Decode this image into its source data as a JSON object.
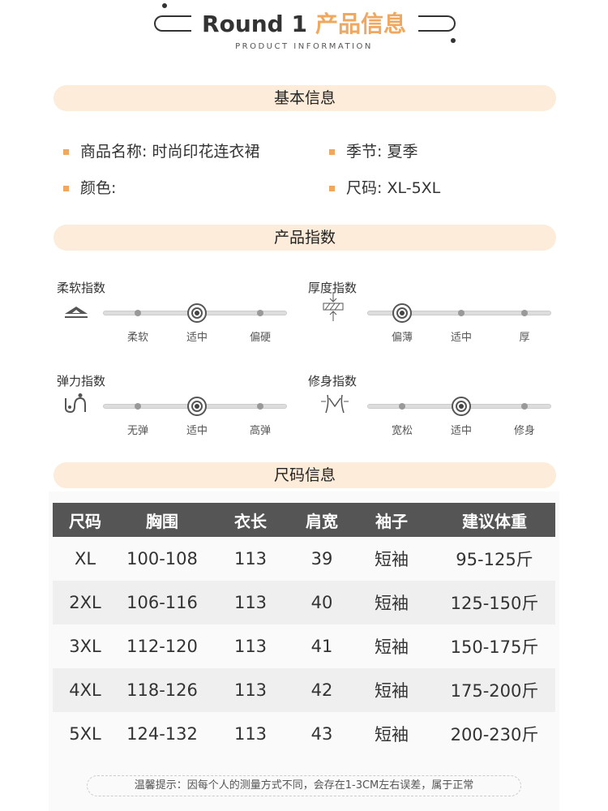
{
  "header": {
    "title_en": "Round 1",
    "title_cn": "产品信息",
    "subtitle": "PRODUCT INFORMATION"
  },
  "basic": {
    "heading": "基本信息",
    "items": [
      {
        "label": "商品名称:",
        "value": "时尚印花连衣裙"
      },
      {
        "label": "季节:",
        "value": "夏季"
      },
      {
        "label": "颜色:",
        "value": ""
      },
      {
        "label": "尺码:",
        "value": "XL-5XL"
      }
    ]
  },
  "index": {
    "heading": "产品指数",
    "groups": [
      {
        "title": "柔软指数",
        "icon": "fabric-softness-icon",
        "options": [
          "柔软",
          "适中",
          "偏硬"
        ],
        "selected": 1
      },
      {
        "title": "厚度指数",
        "icon": "thickness-compress-icon",
        "options": [
          "偏薄",
          "适中",
          "厚"
        ],
        "selected": 0
      },
      {
        "title": "弹力指数",
        "icon": "elasticity-icon",
        "options": [
          "无弹",
          "适中",
          "高弹"
        ],
        "selected": 1
      },
      {
        "title": "修身指数",
        "icon": "waist-fit-icon",
        "options": [
          "宽松",
          "适中",
          "修身"
        ],
        "selected": 1
      }
    ]
  },
  "size": {
    "heading": "尺码信息",
    "columns": [
      "尺码",
      "胸围",
      "衣长",
      "肩宽",
      "袖子",
      "建议体重"
    ],
    "rows": [
      [
        "XL",
        "100-108",
        "113",
        "39",
        "短袖",
        "95-125斤"
      ],
      [
        "2XL",
        "106-116",
        "113",
        "40",
        "短袖",
        "125-150斤"
      ],
      [
        "3XL",
        "112-120",
        "113",
        "41",
        "短袖",
        "150-175斤"
      ],
      [
        "4XL",
        "118-126",
        "113",
        "42",
        "短袖",
        "175-200斤"
      ],
      [
        "5XL",
        "124-132",
        "113",
        "43",
        "短袖",
        "200-230斤"
      ]
    ],
    "tip": "温馨提示：因每个人的测量方式不同，会存在1-3CM左右误差，属于正常"
  },
  "colors": {
    "accent": "#f0a860",
    "pill": "#fcecd9",
    "table_header": "#555555"
  }
}
